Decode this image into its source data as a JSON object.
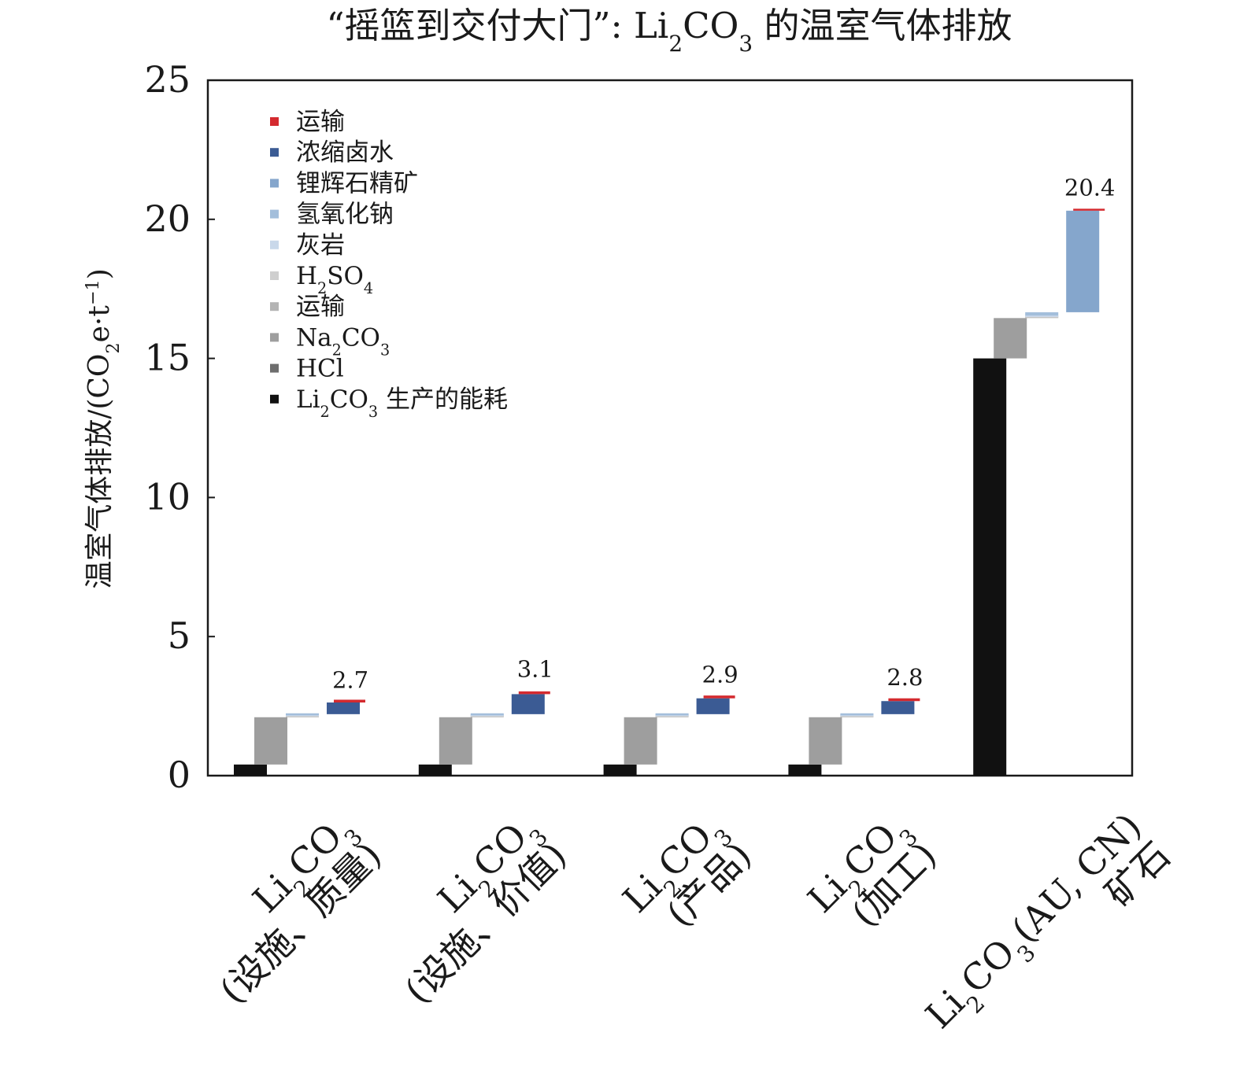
{
  "chart_data": {
    "type": "bar",
    "subtype": "waterfall",
    "title": "“摇篮到交付大门”: Li2CO3 的温室气体排放",
    "ylabel": "温室气体排放/(CO2e·t−1)",
    "ylim": [
      0,
      25
    ],
    "yticks": [
      0,
      5,
      10,
      15,
      20,
      25
    ],
    "grid": false,
    "legend_position": "top-left",
    "categories": [
      "Li2CO3 (设施、质量)",
      "Li2CO3 (设施、价值)",
      "Li2CO3 (产品)",
      "Li2CO3 (加工)",
      "Li2CO3 (AU, CN) 矿石"
    ],
    "category_lines": [
      [
        "Li2CO3",
        "(设施、质量)"
      ],
      [
        "Li2CO3",
        "(设施、价值)"
      ],
      [
        "Li2CO3",
        "(产品)"
      ],
      [
        "Li2CO3",
        "(加工)"
      ],
      [
        "Li2CO3(AU, CN)",
        "矿石"
      ]
    ],
    "totals": [
      2.7,
      3.1,
      2.9,
      2.8,
      20.4
    ],
    "total_labels": [
      "2.7",
      "3.1",
      "2.9",
      "2.8",
      "20.4"
    ],
    "series": [
      {
        "name": "Li2CO3 生产的能耗",
        "color": "#111111",
        "values": [
          0.4,
          0.4,
          0.4,
          0.4,
          15.0
        ]
      },
      {
        "name": "HCl",
        "color": "#6e6e6e",
        "values": [
          0.0,
          0.0,
          0.0,
          0.0,
          0.0
        ]
      },
      {
        "name": "Na2CO3",
        "color": "#9e9e9e",
        "values": [
          1.7,
          1.7,
          1.7,
          1.7,
          1.45
        ]
      },
      {
        "name": "运输",
        "color": "#b4b4b4",
        "values": [
          0.02,
          0.02,
          0.02,
          0.02,
          0.02
        ]
      },
      {
        "name": "H2SO4",
        "color": "#cfcfcf",
        "values": [
          0.02,
          0.02,
          0.02,
          0.02,
          0.02
        ]
      },
      {
        "name": "灰岩",
        "color": "#c9d8ea",
        "values": [
          0.03,
          0.03,
          0.03,
          0.03,
          0.05
        ]
      },
      {
        "name": "氢氧化钠",
        "color": "#a3bedb",
        "values": [
          0.04,
          0.04,
          0.04,
          0.04,
          0.12
        ]
      },
      {
        "name": "锂辉石精矿",
        "color": "#85a6cc",
        "values": [
          0.0,
          0.0,
          0.0,
          0.0,
          3.65
        ]
      },
      {
        "name": "浓缩卤水",
        "color": "#3b5b94",
        "values": [
          0.42,
          0.72,
          0.57,
          0.47,
          0.0
        ]
      },
      {
        "name": "运输",
        "color": "#d42a2f",
        "values": [
          0.1,
          0.1,
          0.1,
          0.1,
          0.05
        ]
      }
    ],
    "legend_order": [
      9,
      8,
      7,
      6,
      5,
      4,
      3,
      2,
      1,
      0
    ]
  }
}
